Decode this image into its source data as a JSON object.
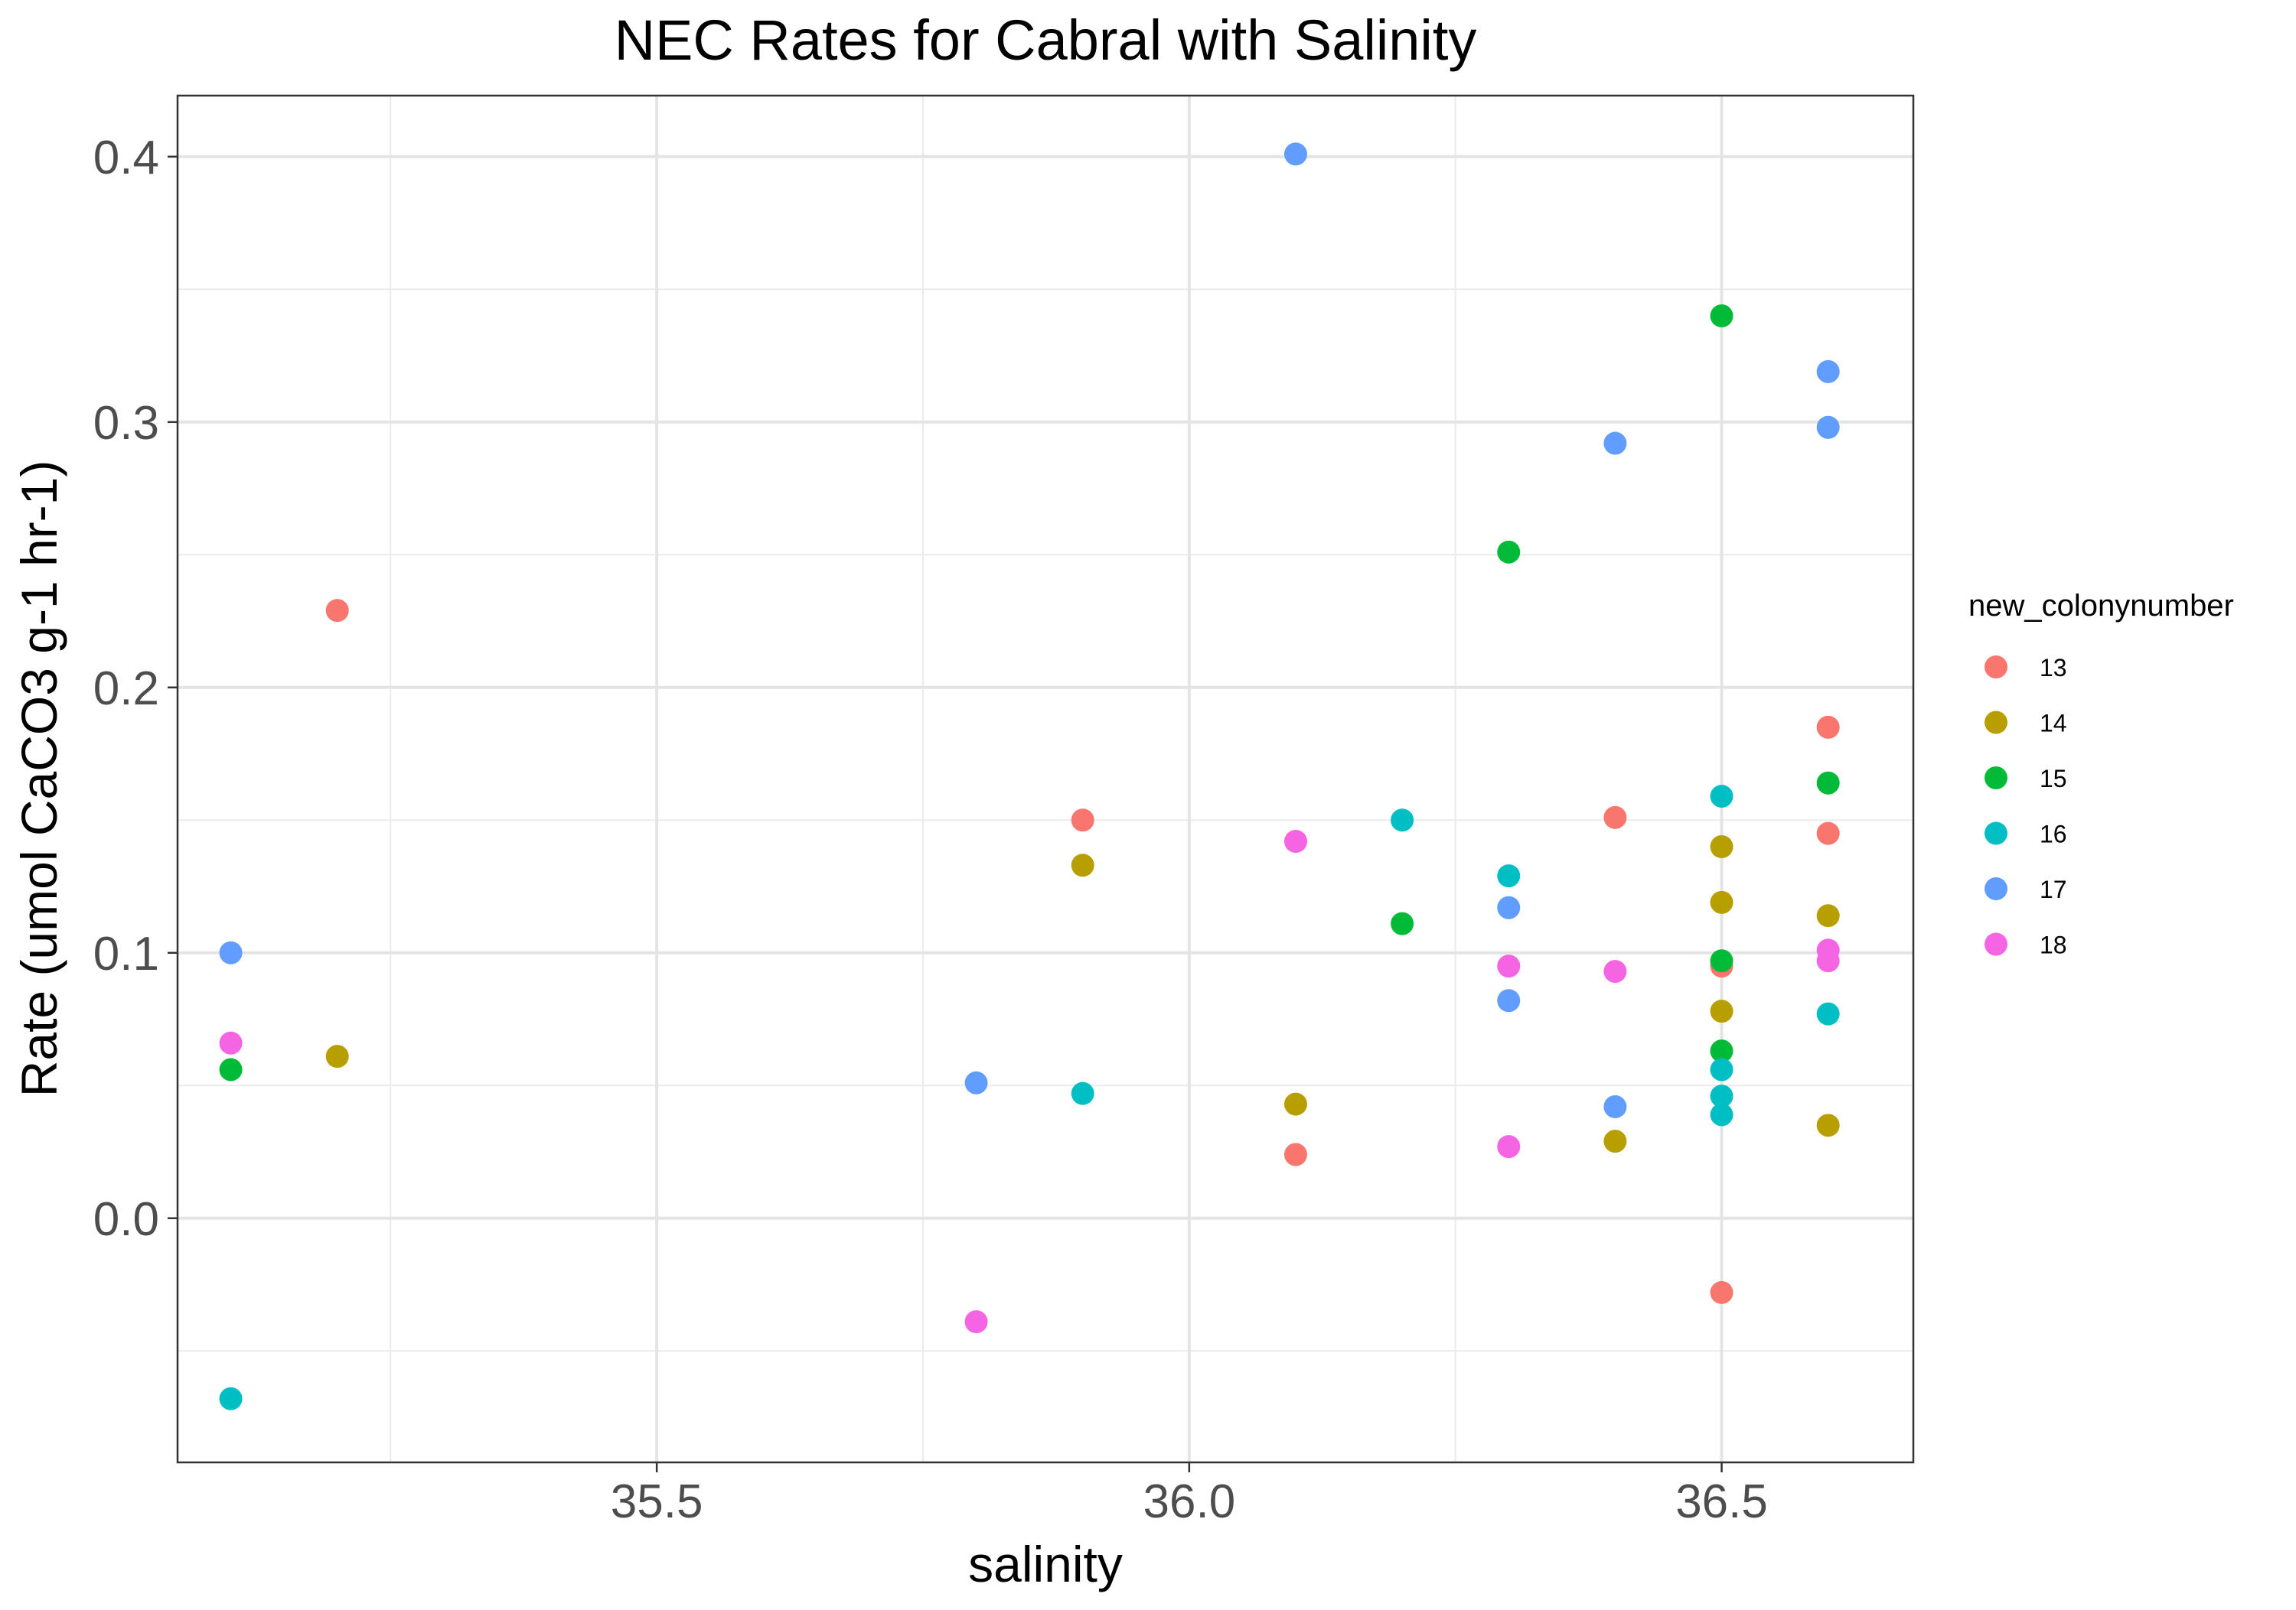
{
  "chart_data": {
    "type": "scatter",
    "title": "NEC Rates for Cabral with Salinity",
    "xlabel": "salinity",
    "ylabel": "Rate (umol CaCO3 g-1 hr-1)",
    "xlim": [
      35.05,
      36.68
    ],
    "ylim": [
      -0.092,
      0.423
    ],
    "x_ticks": [
      35.5,
      36.0,
      36.5
    ],
    "x_tick_labels": [
      "35.5",
      "36.0",
      "36.5"
    ],
    "y_ticks": [
      0.0,
      0.1,
      0.2,
      0.3,
      0.4
    ],
    "y_tick_labels": [
      "0.0",
      "0.1",
      "0.2",
      "0.3",
      "0.4"
    ],
    "grid": true,
    "legend": {
      "title": "new_colonynumber",
      "position": "right"
    },
    "series": [
      {
        "name": "13",
        "color": "#F8766D",
        "points": [
          {
            "x": 35.2,
            "y": 0.229
          },
          {
            "x": 35.9,
            "y": 0.15
          },
          {
            "x": 36.1,
            "y": 0.024
          },
          {
            "x": 36.4,
            "y": 0.151
          },
          {
            "x": 36.5,
            "y": 0.095
          },
          {
            "x": 36.5,
            "y": -0.028
          },
          {
            "x": 36.6,
            "y": 0.185
          },
          {
            "x": 36.6,
            "y": 0.145
          }
        ]
      },
      {
        "name": "14",
        "color": "#B79F00",
        "points": [
          {
            "x": 35.2,
            "y": 0.061
          },
          {
            "x": 35.9,
            "y": 0.133
          },
          {
            "x": 36.1,
            "y": 0.043
          },
          {
            "x": 36.4,
            "y": 0.029
          },
          {
            "x": 36.5,
            "y": 0.14
          },
          {
            "x": 36.5,
            "y": 0.119
          },
          {
            "x": 36.5,
            "y": 0.078
          },
          {
            "x": 36.6,
            "y": 0.114
          },
          {
            "x": 36.6,
            "y": 0.035
          }
        ]
      },
      {
        "name": "15",
        "color": "#00BA38",
        "points": [
          {
            "x": 35.1,
            "y": 0.056
          },
          {
            "x": 36.2,
            "y": 0.111
          },
          {
            "x": 36.3,
            "y": 0.251
          },
          {
            "x": 36.5,
            "y": 0.34
          },
          {
            "x": 36.5,
            "y": 0.097
          },
          {
            "x": 36.5,
            "y": 0.063
          },
          {
            "x": 36.6,
            "y": 0.164
          }
        ]
      },
      {
        "name": "16",
        "color": "#00BFC4",
        "points": [
          {
            "x": 35.1,
            "y": -0.068
          },
          {
            "x": 35.9,
            "y": 0.047
          },
          {
            "x": 36.2,
            "y": 0.15
          },
          {
            "x": 36.3,
            "y": 0.129
          },
          {
            "x": 36.5,
            "y": 0.159
          },
          {
            "x": 36.5,
            "y": 0.056
          },
          {
            "x": 36.5,
            "y": 0.046
          },
          {
            "x": 36.5,
            "y": 0.039
          },
          {
            "x": 36.6,
            "y": 0.077
          }
        ]
      },
      {
        "name": "17",
        "color": "#619CFF",
        "points": [
          {
            "x": 35.1,
            "y": 0.1
          },
          {
            "x": 35.8,
            "y": 0.051
          },
          {
            "x": 36.1,
            "y": 0.401
          },
          {
            "x": 36.3,
            "y": 0.117
          },
          {
            "x": 36.3,
            "y": 0.082
          },
          {
            "x": 36.4,
            "y": 0.292
          },
          {
            "x": 36.4,
            "y": 0.042
          },
          {
            "x": 36.6,
            "y": 0.319
          },
          {
            "x": 36.6,
            "y": 0.298
          }
        ]
      },
      {
        "name": "18",
        "color": "#F564E3",
        "points": [
          {
            "x": 35.1,
            "y": 0.066
          },
          {
            "x": 35.8,
            "y": -0.039
          },
          {
            "x": 36.1,
            "y": 0.142
          },
          {
            "x": 36.3,
            "y": 0.095
          },
          {
            "x": 36.3,
            "y": 0.027
          },
          {
            "x": 36.4,
            "y": 0.093
          },
          {
            "x": 36.6,
            "y": 0.101
          },
          {
            "x": 36.6,
            "y": 0.097
          }
        ]
      }
    ]
  }
}
